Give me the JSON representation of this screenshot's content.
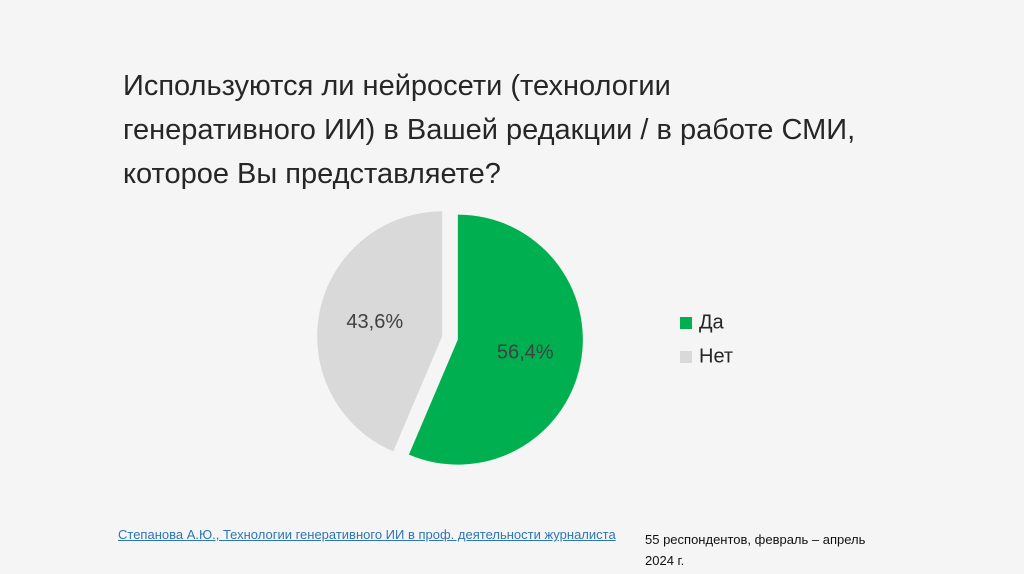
{
  "chart_data": {
    "type": "pie",
    "title": "Используются ли нейросети (технологии\nгенеративного ИИ) в Вашей редакции / в работе СМИ,\nкоторое Вы представляете?",
    "categories": [
      "Да",
      "Нет"
    ],
    "values": [
      56.4,
      43.6
    ],
    "value_labels": [
      "56,4%",
      "43,6%"
    ],
    "colors": [
      "#00b050",
      "#d9d9d9"
    ],
    "legend": "right"
  },
  "source": "Степанова А.Ю., Технологии генеративного ИИ в проф. деятельности журналиста",
  "note": "55 респондентов, февраль – апрель\n2024 г."
}
